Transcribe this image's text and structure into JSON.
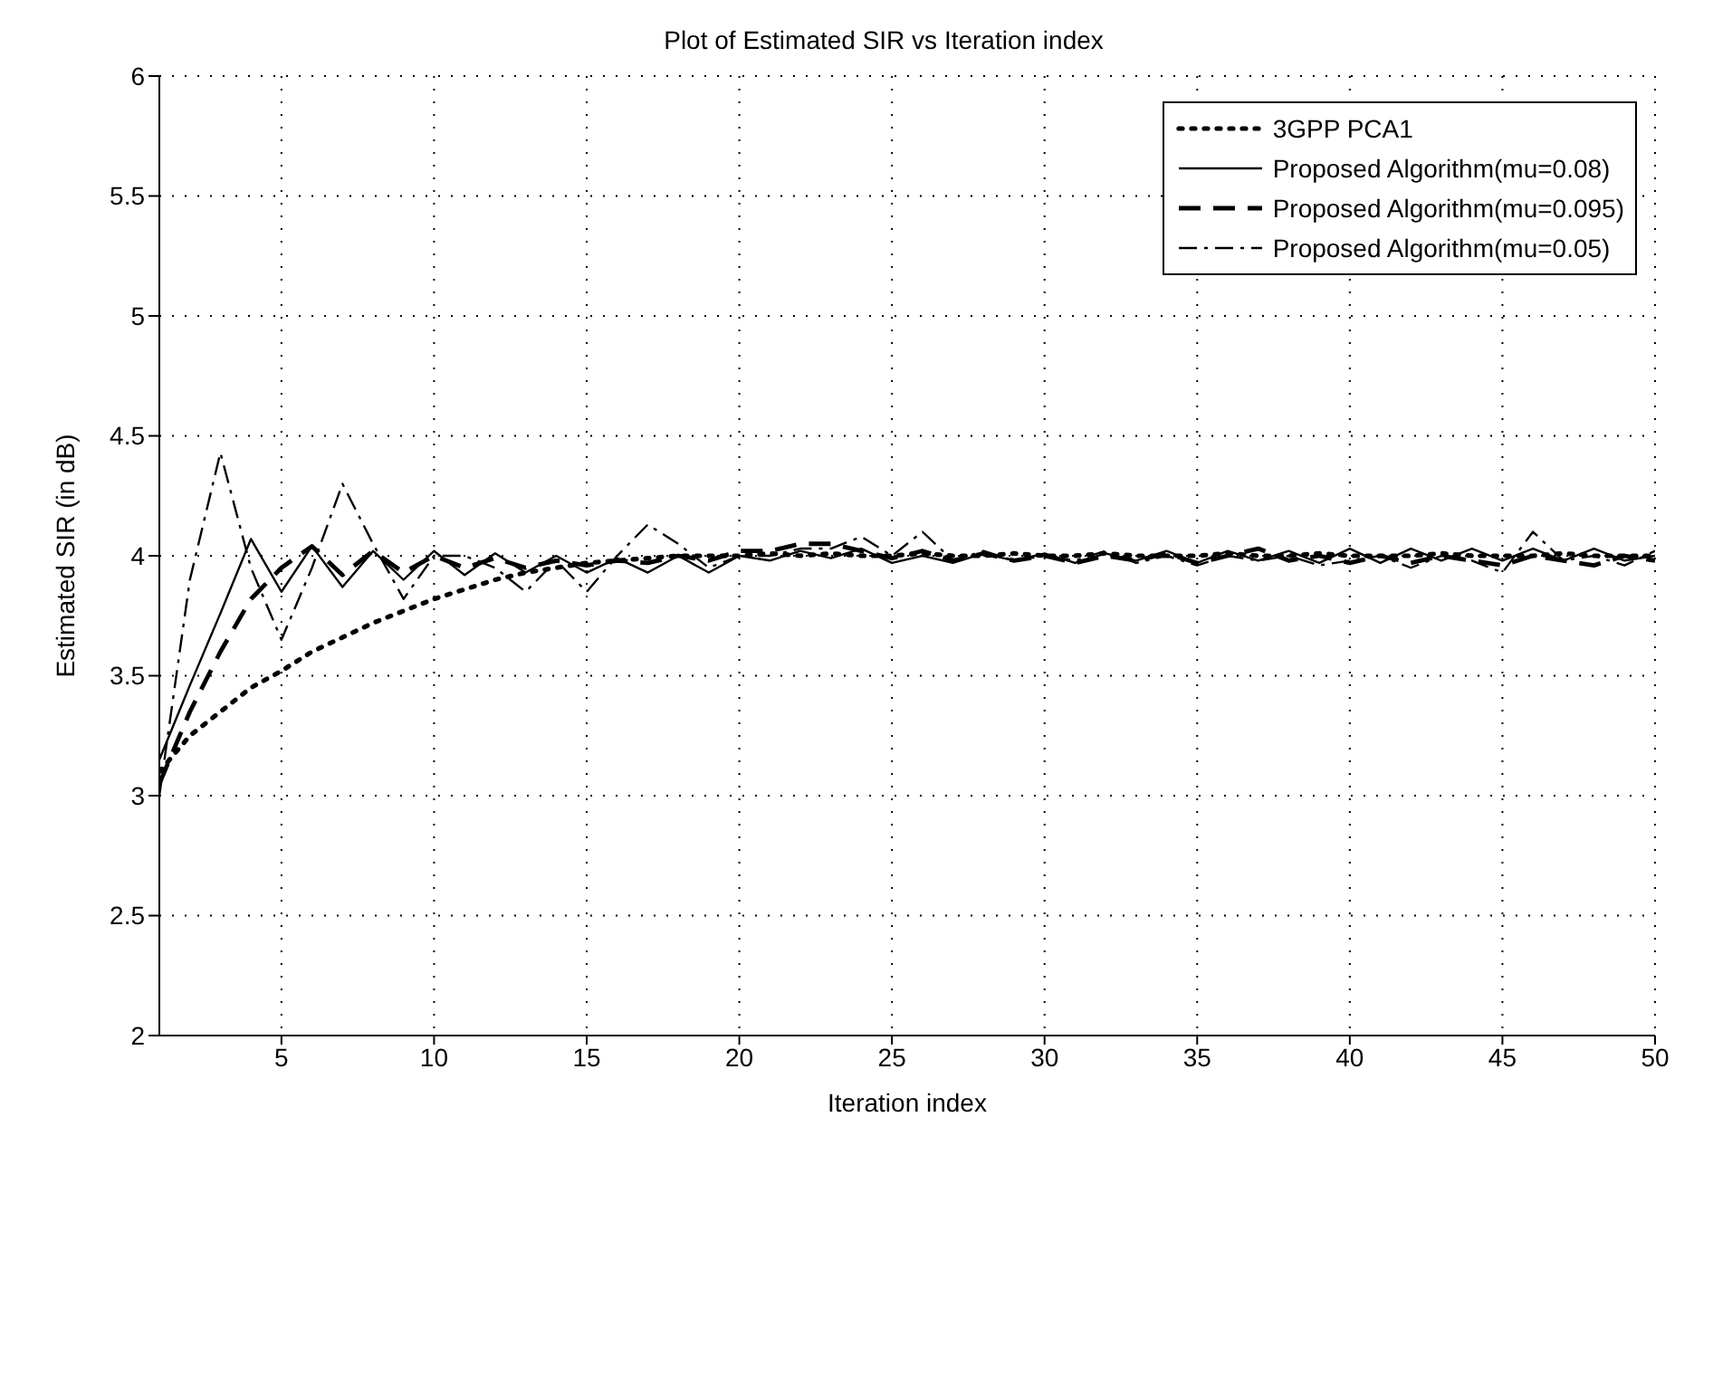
{
  "chart_data": {
    "type": "line",
    "title": "Plot of Estimated SIR vs Iteration index",
    "xlabel": "Iteration index",
    "ylabel": "Estimated SIR (in dB)",
    "x": [
      1,
      2,
      3,
      4,
      5,
      6,
      7,
      8,
      9,
      10,
      11,
      12,
      13,
      14,
      15,
      16,
      17,
      18,
      19,
      20,
      21,
      22,
      23,
      24,
      25,
      26,
      27,
      28,
      29,
      30,
      31,
      32,
      33,
      34,
      35,
      36,
      37,
      38,
      39,
      40,
      41,
      42,
      43,
      44,
      45,
      46,
      47,
      48,
      49,
      50
    ],
    "series": [
      {
        "name": "3GPP PCA1",
        "color": "#000000",
        "line_style": "dotted",
        "values": [
          3.1,
          3.25,
          3.35,
          3.45,
          3.52,
          3.6,
          3.66,
          3.72,
          3.77,
          3.82,
          3.86,
          3.9,
          3.93,
          3.95,
          3.97,
          3.98,
          3.99,
          4.0,
          4.0,
          4.0,
          4.01,
          4.0,
          4.01,
          4.0,
          4.0,
          4.01,
          4.0,
          4.0,
          4.01,
          4.0,
          4.0,
          4.01,
          4.0,
          4.0,
          4.0,
          4.01,
          4.0,
          4.0,
          4.01,
          4.0,
          4.0,
          4.0,
          4.01,
          4.0,
          4.0,
          4.0,
          4.01,
          4.0,
          4.0,
          4.0
        ]
      },
      {
        "name": "Proposed Algorithm(mu=0.08)",
        "color": "#000000",
        "line_style": "solid",
        "values": [
          3.15,
          3.46,
          3.76,
          4.07,
          3.85,
          4.04,
          3.87,
          4.02,
          3.9,
          4.02,
          3.92,
          4.01,
          3.93,
          4.0,
          3.93,
          3.99,
          3.93,
          4.0,
          3.93,
          4.0,
          3.98,
          4.02,
          3.99,
          4.03,
          3.97,
          4.0,
          3.97,
          4.01,
          3.98,
          4.01,
          3.97,
          4.01,
          3.98,
          4.02,
          3.97,
          4.02,
          3.98,
          4.02,
          3.97,
          4.03,
          3.97,
          4.03,
          3.98,
          4.03,
          3.98,
          4.03,
          3.98,
          4.03,
          3.98,
          4.0
        ]
      },
      {
        "name": "Proposed Algorithm(mu=0.095)",
        "color": "#000000",
        "line_style": "dashed",
        "values": [
          3.05,
          3.35,
          3.6,
          3.82,
          3.95,
          4.04,
          3.92,
          4.02,
          3.93,
          4.0,
          3.95,
          3.99,
          3.95,
          3.98,
          3.96,
          3.98,
          3.97,
          4.0,
          3.98,
          4.02,
          4.02,
          4.05,
          4.05,
          4.02,
          3.99,
          4.02,
          3.98,
          4.01,
          3.98,
          4.0,
          3.97,
          4.0,
          3.98,
          4.01,
          3.97,
          4.0,
          4.03,
          3.98,
          4.0,
          3.97,
          4.0,
          3.97,
          4.0,
          3.98,
          3.96,
          4.0,
          3.98,
          3.96,
          4.0,
          3.98
        ]
      },
      {
        "name": "Proposed Algorithm(mu=0.05)",
        "color": "#000000",
        "line_style": "dashdot",
        "values": [
          3.0,
          3.9,
          4.43,
          3.95,
          3.65,
          3.95,
          4.3,
          4.05,
          3.82,
          4.0,
          4.0,
          3.95,
          3.85,
          3.98,
          3.85,
          4.0,
          4.13,
          4.05,
          3.95,
          4.0,
          4.0,
          4.03,
          4.03,
          4.08,
          4.0,
          4.1,
          3.98,
          4.02,
          3.98,
          4.0,
          3.98,
          4.02,
          3.97,
          4.0,
          3.96,
          4.0,
          3.98,
          4.0,
          3.96,
          3.98,
          4.0,
          3.95,
          4.0,
          3.98,
          3.93,
          4.1,
          3.98,
          4.0,
          3.96,
          4.02
        ]
      }
    ],
    "xlim": [
      1,
      50
    ],
    "xticks": [
      5,
      10,
      15,
      20,
      25,
      30,
      35,
      40,
      45,
      50
    ],
    "ylim": [
      2,
      6
    ],
    "yticks": [
      2,
      2.5,
      3,
      3.5,
      4,
      4.5,
      5,
      5.5,
      6
    ],
    "grid": true,
    "legend": "top right",
    "marker": "none"
  }
}
